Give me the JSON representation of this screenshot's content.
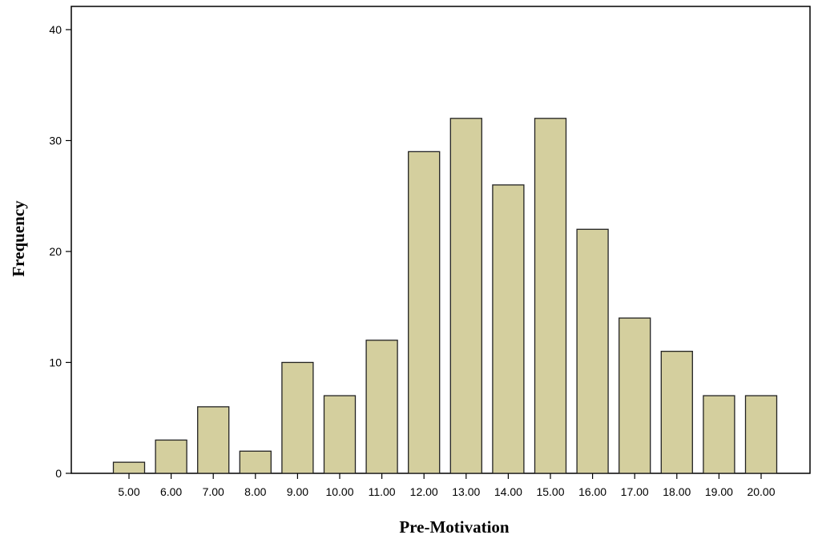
{
  "chart_data": {
    "type": "bar",
    "title": "",
    "xlabel": "Pre-Motivation",
    "ylabel": "Frequency",
    "categories": [
      "5.00",
      "6.00",
      "7.00",
      "8.00",
      "9.00",
      "10.00",
      "11.00",
      "12.00",
      "13.00",
      "14.00",
      "15.00",
      "16.00",
      "17.00",
      "18.00",
      "19.00",
      "20.00"
    ],
    "values": [
      1,
      3,
      6,
      2,
      10,
      7,
      12,
      29,
      32,
      26,
      32,
      22,
      14,
      11,
      7,
      7
    ],
    "ylim": [
      0,
      42
    ],
    "yticks": [
      0,
      10,
      20,
      30,
      40
    ],
    "grid": false,
    "colors": {
      "bar_fill": "#d4cf9e",
      "bar_stroke": "#222222",
      "axis": "#000000"
    }
  }
}
